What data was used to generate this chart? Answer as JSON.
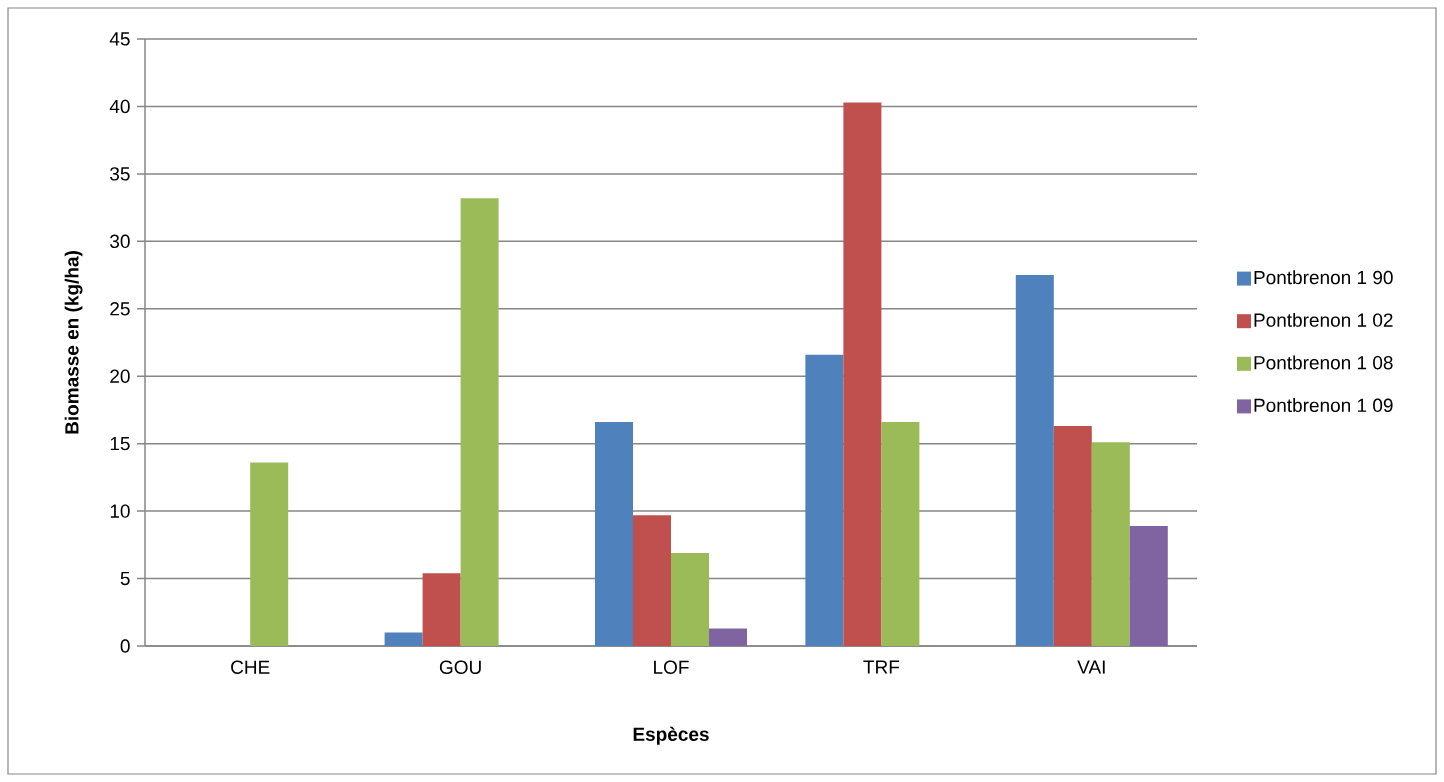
{
  "chart_data": {
    "type": "bar",
    "xlabel": "Espèces",
    "ylabel": "Biomasse en (kg/ha)",
    "categories": [
      "CHE",
      "GOU",
      "LOF",
      "TRF",
      "VAI"
    ],
    "series": [
      {
        "name": "Pontbrenon 1 90",
        "color": "#4f81bd",
        "values": [
          null,
          1.0,
          16.6,
          21.6,
          27.5
        ]
      },
      {
        "name": "Pontbrenon 1 02",
        "color": "#c0504d",
        "values": [
          null,
          5.4,
          9.7,
          40.3,
          16.3
        ]
      },
      {
        "name": "Pontbrenon 1 08",
        "color": "#9bbb59",
        "values": [
          13.6,
          33.2,
          6.9,
          16.6,
          15.1
        ]
      },
      {
        "name": "Pontbrenon 1 09",
        "color": "#8064a2",
        "values": [
          null,
          null,
          1.3,
          null,
          8.9
        ]
      }
    ],
    "ylim": [
      0,
      45
    ],
    "yticks": [
      0,
      5,
      10,
      15,
      20,
      25,
      30,
      35,
      40,
      45
    ],
    "grid": "y",
    "legend": "right"
  }
}
